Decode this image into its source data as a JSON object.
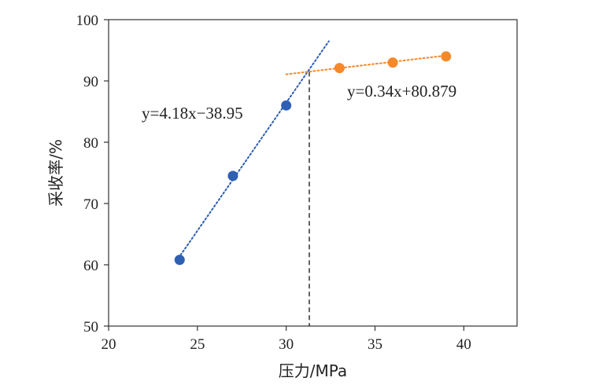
{
  "chart_data": {
    "type": "scatter",
    "xlabel": "压力/MPa",
    "ylabel": "采收率/%",
    "xlim": [
      20,
      43
    ],
    "ylim": [
      50,
      100
    ],
    "x_ticks": [
      20,
      25,
      30,
      35,
      40
    ],
    "y_ticks": [
      50,
      60,
      70,
      80,
      90,
      100
    ],
    "grid": false,
    "legend": "none",
    "series": [
      {
        "color": "#2f5fb3",
        "points": [
          {
            "x": 24,
            "y": 60.8
          },
          {
            "x": 27,
            "y": 74.5
          },
          {
            "x": 30,
            "y": 86.0
          }
        ],
        "trendline": {
          "slope": 4.18,
          "intercept": -38.95,
          "x_range": [
            23.8,
            32.4
          ],
          "style": "dotted"
        },
        "equation_label": "y=4.18x−38.95"
      },
      {
        "color": "#f5892a",
        "points": [
          {
            "x": 33,
            "y": 92.1
          },
          {
            "x": 36,
            "y": 93.0
          },
          {
            "x": 39,
            "y": 94.0
          }
        ],
        "trendline": {
          "slope": 0.34,
          "intercept": 80.879,
          "x_range": [
            30,
            39
          ],
          "style": "dotted"
        },
        "equation_label": "y=0.34x+80.879"
      }
    ],
    "intersection_marker": {
      "x": 31.3,
      "y": 91.5,
      "style": "dashed",
      "color": "#222222"
    }
  }
}
